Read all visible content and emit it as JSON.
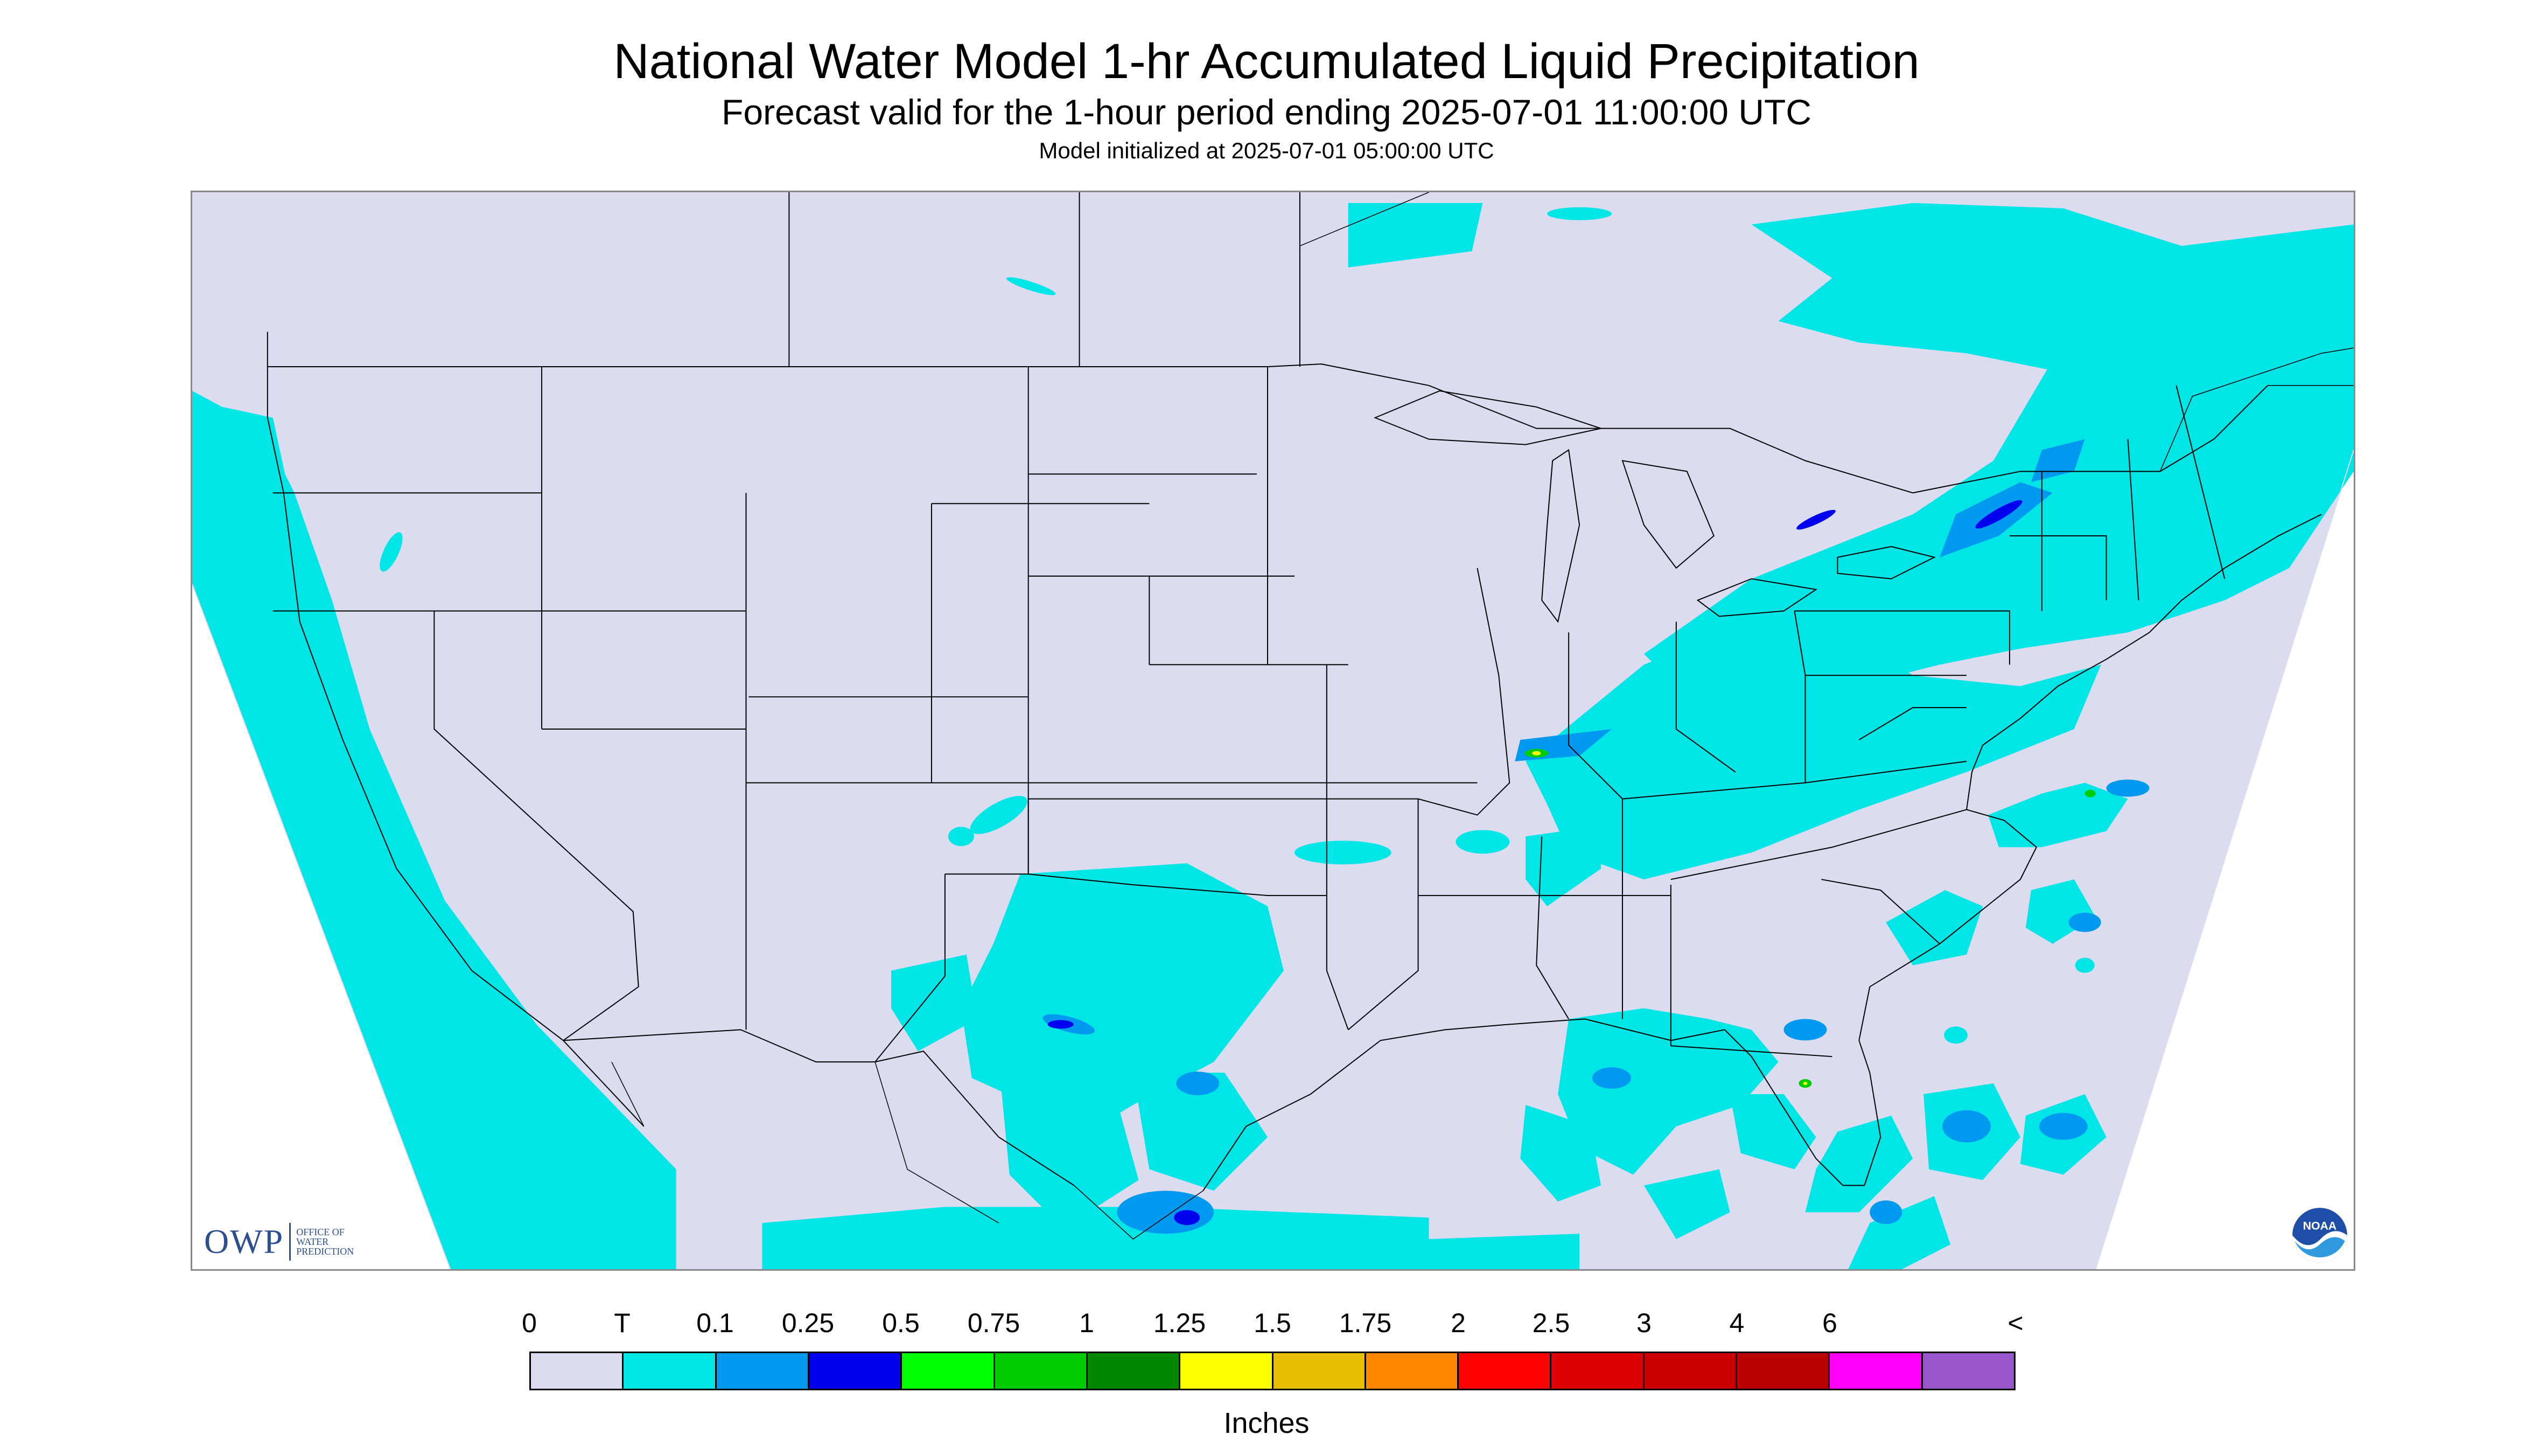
{
  "header": {
    "title": "National Water Model 1-hr Accumulated Liquid Precipitation",
    "subtitle": "Forecast valid for the 1-hour period ending 2025-07-01 11:00:00 UTC",
    "init": "Model initialized at 2025-07-01 05:00:00 UTC"
  },
  "map": {
    "region": "CONUS",
    "background_color": "#dcdcf0",
    "outside_domain_color": "#ffffff",
    "boundary_color": "#000000"
  },
  "logos": {
    "owp_mark": "OWP",
    "owp_text": "Office of Water Prediction",
    "noaa_text": "NOAA",
    "owp_icon": "owp-logo",
    "noaa_icon": "noaa-logo"
  },
  "legend": {
    "labels": [
      "0",
      "T",
      "0.1",
      "0.25",
      "0.5",
      "0.75",
      "1",
      "1.25",
      "1.5",
      "1.75",
      "2",
      "2.5",
      "3",
      "4",
      "6",
      "<"
    ],
    "colors": [
      "#dcdcf0",
      "#00e5e5",
      "#0099f0",
      "#0000f0",
      "#00ff00",
      "#00cc00",
      "#008800",
      "#ffff00",
      "#e6c000",
      "#ff8800",
      "#ff0000",
      "#dd0000",
      "#cc0000",
      "#bb0000",
      "#ff00ff",
      "#9955cc"
    ],
    "units": "Inches"
  }
}
